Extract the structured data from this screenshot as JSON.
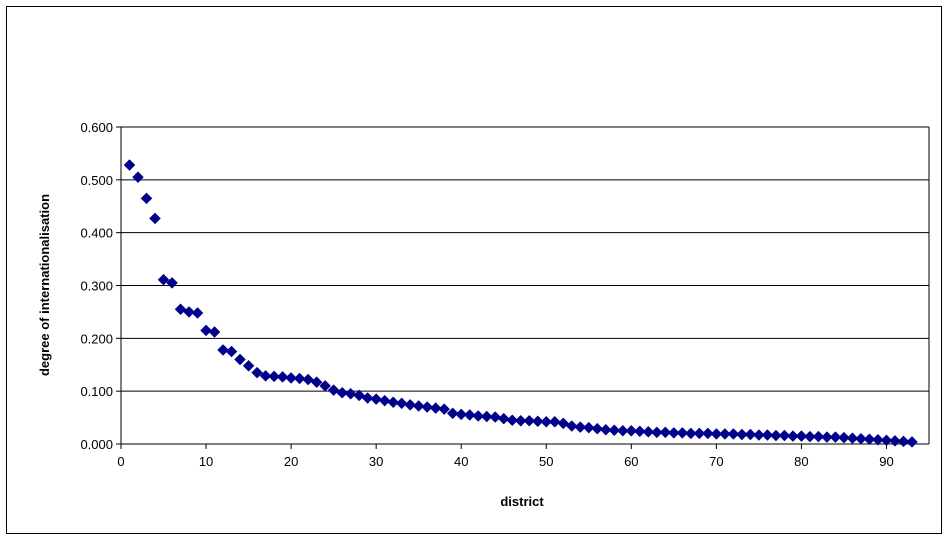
{
  "chart_data": {
    "type": "scatter",
    "title": "",
    "xlabel": "district",
    "ylabel": "degree of internationalisation",
    "xlim": [
      0,
      95
    ],
    "ylim": [
      0,
      0.6
    ],
    "x_ticks": [
      0,
      10,
      20,
      30,
      40,
      50,
      60,
      70,
      80,
      90
    ],
    "y_ticks": [
      0,
      0.1,
      0.2,
      0.3,
      0.4,
      0.5,
      0.6
    ],
    "x_tick_labels": [
      "0",
      "10",
      "20",
      "30",
      "40",
      "50",
      "60",
      "70",
      "80",
      "90"
    ],
    "y_tick_labels": [
      "0.000",
      "0.100",
      "0.200",
      "0.300",
      "0.400",
      "0.500",
      "0.600"
    ],
    "grid": "horizontal",
    "legend": "none",
    "marker": "diamond",
    "marker_color": "#00008B",
    "series": [
      {
        "x": [
          1,
          2,
          3,
          4,
          5,
          6,
          7,
          8,
          9,
          10,
          11,
          12,
          13,
          14,
          15,
          16,
          17,
          18,
          19,
          20,
          21,
          22,
          23,
          24,
          25,
          26,
          27,
          28,
          29,
          30,
          31,
          32,
          33,
          34,
          35,
          36,
          37,
          38,
          39,
          40,
          41,
          42,
          43,
          44,
          45,
          46,
          47,
          48,
          49,
          50,
          51,
          52,
          53,
          54,
          55,
          56,
          57,
          58,
          59,
          60,
          61,
          62,
          63,
          64,
          65,
          66,
          67,
          68,
          69,
          70,
          71,
          72,
          73,
          74,
          75,
          76,
          77,
          78,
          79,
          80,
          81,
          82,
          83,
          84,
          85,
          86,
          87,
          88,
          89,
          90,
          91,
          92,
          93
        ],
        "y": [
          0.528,
          0.505,
          0.465,
          0.427,
          0.311,
          0.305,
          0.255,
          0.25,
          0.248,
          0.215,
          0.212,
          0.178,
          0.175,
          0.16,
          0.148,
          0.135,
          0.129,
          0.128,
          0.127,
          0.125,
          0.124,
          0.122,
          0.117,
          0.11,
          0.102,
          0.097,
          0.095,
          0.092,
          0.087,
          0.085,
          0.082,
          0.079,
          0.077,
          0.074,
          0.072,
          0.07,
          0.068,
          0.066,
          0.058,
          0.056,
          0.055,
          0.053,
          0.052,
          0.051,
          0.048,
          0.045,
          0.044,
          0.044,
          0.043,
          0.042,
          0.042,
          0.039,
          0.034,
          0.032,
          0.031,
          0.029,
          0.027,
          0.026,
          0.025,
          0.025,
          0.024,
          0.023,
          0.022,
          0.022,
          0.021,
          0.021,
          0.02,
          0.02,
          0.02,
          0.019,
          0.019,
          0.019,
          0.018,
          0.018,
          0.017,
          0.017,
          0.016,
          0.016,
          0.015,
          0.015,
          0.014,
          0.014,
          0.013,
          0.013,
          0.012,
          0.011,
          0.01,
          0.009,
          0.008,
          0.007,
          0.006,
          0.005,
          0.004
        ]
      }
    ]
  }
}
